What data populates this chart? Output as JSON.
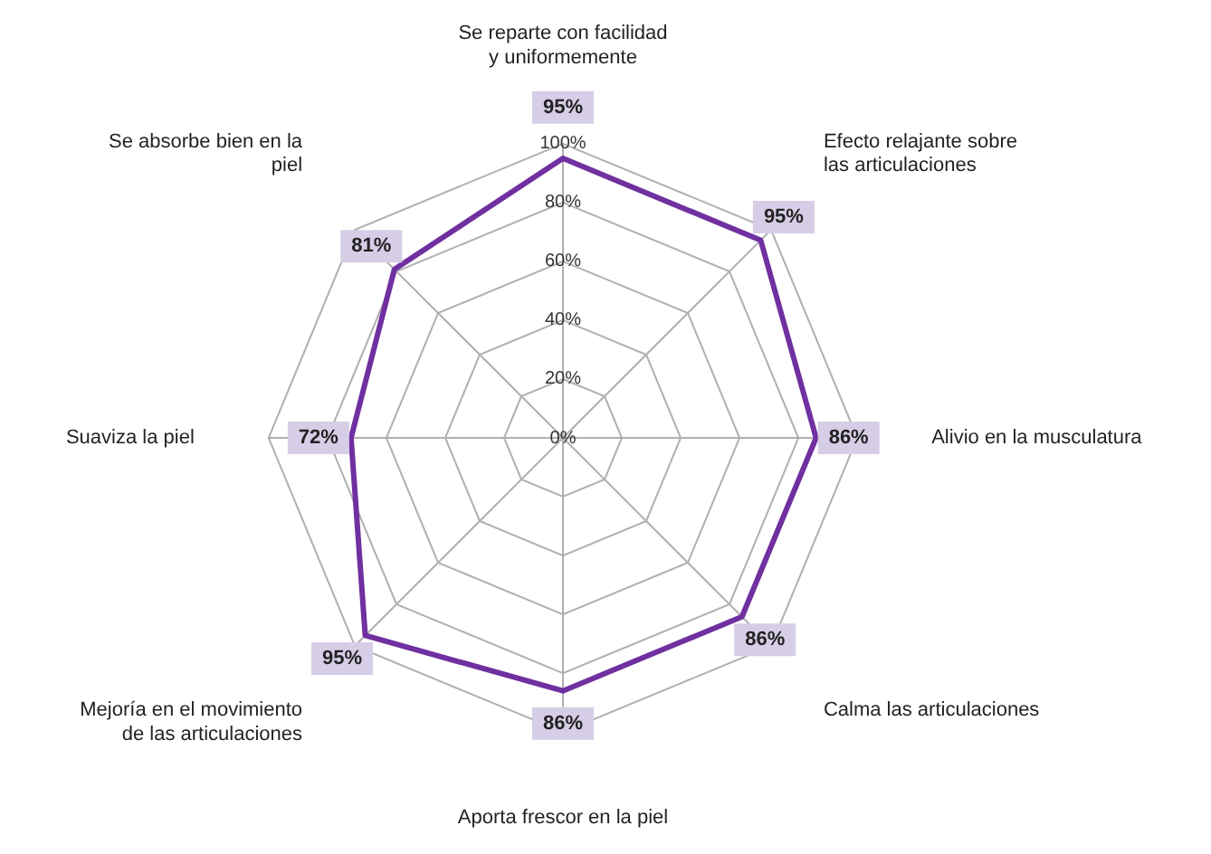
{
  "chart_data": {
    "type": "radar",
    "categories": [
      "Se reparte con facilidad y uniformemente",
      "Efecto relajante sobre las articulaciones",
      "Alivio en la musculatura",
      "Calma las articulaciones",
      "Aporta frescor en la piel",
      "Mejoría en el movimiento de las articulaciones",
      "Suaviza la piel",
      "Se absorbe bien en la piel"
    ],
    "series": [
      {
        "color": "#7030a0",
        "values": [
          95,
          95,
          86,
          86,
          86,
          95,
          72,
          81
        ],
        "value_labels": [
          "95%",
          "95%",
          "86%",
          "86%",
          "86%",
          "95%",
          "72%",
          "81%"
        ]
      }
    ],
    "ylim": [
      0,
      100
    ],
    "yticks": [
      {
        "value": 0,
        "label": "0%"
      },
      {
        "value": 20,
        "label": "20%"
      },
      {
        "value": 40,
        "label": "40%"
      },
      {
        "value": 60,
        "label": "60%"
      },
      {
        "value": 80,
        "label": "80%"
      },
      {
        "value": 100,
        "label": "100%"
      }
    ],
    "grid": true,
    "legend": false,
    "marker": "none"
  }
}
